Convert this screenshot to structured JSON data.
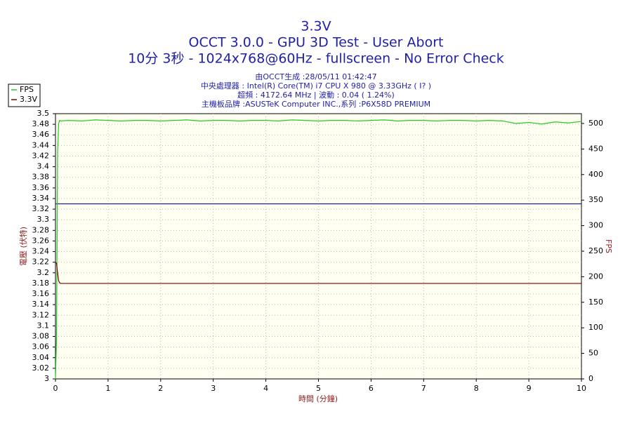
{
  "chart_data": {
    "type": "line",
    "title": [
      "3.3V",
      "OCCT 3.0.0 - GPU 3D Test - User Abort",
      "10分 3秒 - 1024x768@60Hz - fullscreen - No Error Check"
    ],
    "subtitle": [
      "由OCCT生成 :28/05/11 01:42:47",
      "中央處理器 : Intel(R) Core(TM) i7 CPU X 980 @ 3.33GHz (  I? )",
      "超頻 : 4172.64 MHz | 波動 : 0.04 ( 1.24%)",
      "主機板品牌 :ASUSTeK Computer INC.,系列 :P6X58D PREMIUM"
    ],
    "xlabel": "時間 (分鐘)",
    "ylabel": "電壓 (伏特)",
    "y2label": "FPS",
    "x": [
      0,
      0.02,
      0.04,
      0.06,
      0.08,
      0.1,
      0.25,
      0.5,
      0.75,
      1,
      1.25,
      1.5,
      1.75,
      2,
      2.25,
      2.5,
      2.75,
      3,
      3.25,
      3.5,
      3.75,
      4,
      4.25,
      4.5,
      4.75,
      5,
      5.25,
      5.5,
      5.75,
      6,
      6.25,
      6.5,
      6.75,
      7,
      7.25,
      7.5,
      7.75,
      8,
      8.25,
      8.5,
      8.75,
      9,
      9.25,
      9.5,
      9.75,
      10
    ],
    "series": [
      {
        "name": "FPS",
        "color": "#22cc22",
        "axis": "y2",
        "values": [
          0,
          80,
          440,
          500,
          506,
          505,
          506,
          505,
          507,
          506,
          505,
          506,
          506,
          505,
          506,
          507,
          505,
          506,
          506,
          505,
          506,
          506,
          505,
          507,
          506,
          505,
          506,
          506,
          505,
          506,
          507,
          505,
          506,
          506,
          505,
          506,
          506,
          505,
          506,
          505,
          500,
          502,
          499,
          503,
          501,
          504
        ]
      },
      {
        "name": "3.3V",
        "color": "#800000",
        "values": [
          3.22,
          3.218,
          3.2,
          3.185,
          3.181,
          3.18,
          3.18,
          3.18,
          3.18,
          3.18,
          3.18,
          3.18,
          3.18,
          3.18,
          3.18,
          3.18,
          3.18,
          3.18,
          3.18,
          3.18,
          3.18,
          3.18,
          3.18,
          3.18,
          3.18,
          3.18,
          3.18,
          3.18,
          3.18,
          3.18,
          3.18,
          3.18,
          3.18,
          3.18,
          3.18,
          3.18,
          3.18,
          3.18,
          3.18,
          3.18,
          3.18,
          3.18,
          3.18,
          3.18,
          3.18,
          3.18
        ]
      }
    ],
    "reference_line": {
      "value": 3.33,
      "color": "#202080"
    },
    "xlim": [
      0,
      10
    ],
    "xticks": [
      0,
      1,
      2,
      3,
      4,
      5,
      6,
      7,
      8,
      9,
      10
    ],
    "ylim": [
      3,
      3.5
    ],
    "yticks": [
      3,
      3.02,
      3.04,
      3.06,
      3.08,
      3.1,
      3.12,
      3.14,
      3.16,
      3.18,
      3.2,
      3.22,
      3.24,
      3.26,
      3.28,
      3.3,
      3.32,
      3.34,
      3.36,
      3.38,
      3.4,
      3.42,
      3.44,
      3.46,
      3.48,
      3.5
    ],
    "y2lim": [
      0,
      519.2
    ],
    "y2ticks": [
      0,
      50,
      100,
      150,
      200,
      250,
      300,
      350,
      400,
      450,
      500
    ],
    "grid": true,
    "legend": "top-left"
  }
}
